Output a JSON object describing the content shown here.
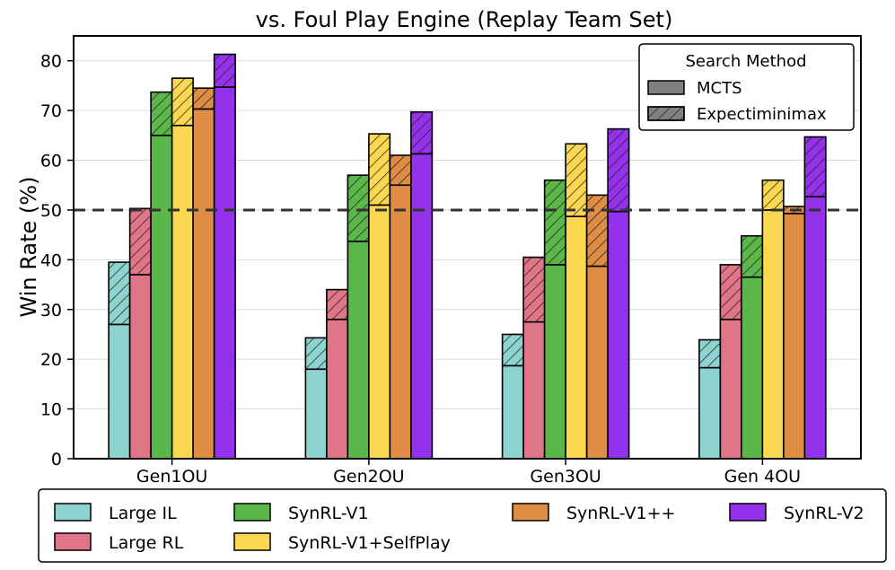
{
  "chart_data": {
    "type": "bar",
    "title": "vs. Foul Play Engine (Replay Team Set)",
    "xlabel": "",
    "ylabel": "Win Rate (%)",
    "ylim": [
      0,
      85
    ],
    "yticks": [
      0,
      10,
      20,
      30,
      40,
      50,
      60,
      70,
      80
    ],
    "grid": "horizontal",
    "reference_line": {
      "y": 50,
      "style": "dashed"
    },
    "categories": [
      "Gen1OU",
      "Gen2OU",
      "Gen3OU",
      "Gen 4OU"
    ],
    "series": [
      {
        "name": "Large IL",
        "color": "#8dd3d0",
        "mcts": [
          27,
          18,
          18.7,
          18.3
        ],
        "expectiminimax": [
          39.5,
          24.3,
          25,
          23.9
        ]
      },
      {
        "name": "Large RL",
        "color": "#e07587",
        "mcts": [
          37,
          28,
          27.5,
          28
        ],
        "expectiminimax": [
          50.3,
          34,
          40.5,
          39
        ]
      },
      {
        "name": "SynRL-V1",
        "color": "#5cb74a",
        "mcts": [
          65,
          43.7,
          39,
          36.5
        ],
        "expectiminimax": [
          73.7,
          57,
          56,
          44.8
        ]
      },
      {
        "name": "SynRL-V1+SelfPlay",
        "color": "#fcd752",
        "mcts": [
          67,
          51,
          48.7,
          50
        ],
        "expectiminimax": [
          76.5,
          65.3,
          63.3,
          56
        ]
      },
      {
        "name": "SynRL-V1++",
        "color": "#df8c44",
        "mcts": [
          70.3,
          55,
          38.7,
          49.3
        ],
        "expectiminimax": [
          74.5,
          61,
          53,
          50.7
        ]
      },
      {
        "name": "SynRL-V2",
        "color": "#9431ea",
        "mcts": [
          74.7,
          61.3,
          49.7,
          52.7
        ],
        "expectiminimax": [
          81.3,
          69.7,
          66.3,
          64.7
        ]
      }
    ],
    "method_legend": {
      "title": "Search Method",
      "entries": [
        "MCTS",
        "Expectiminimax"
      ],
      "placement": "top-right"
    },
    "series_legend_placement": "bottom"
  }
}
